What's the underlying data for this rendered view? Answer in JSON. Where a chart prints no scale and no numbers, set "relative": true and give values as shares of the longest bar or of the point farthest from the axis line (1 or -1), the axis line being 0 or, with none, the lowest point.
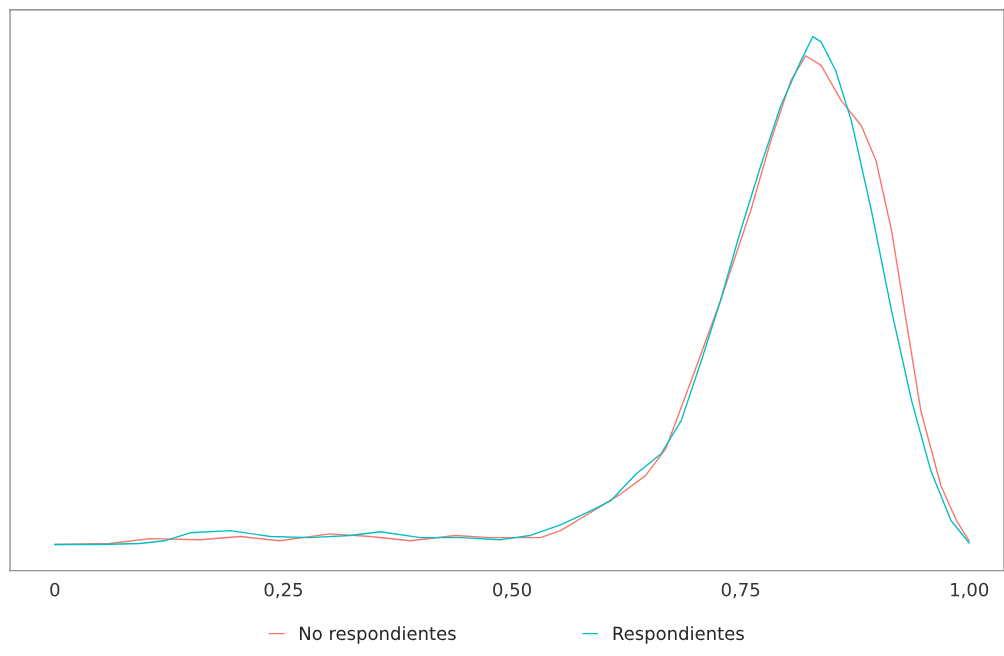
{
  "chart_data": {
    "type": "line",
    "relative": true,
    "xlim": [
      -0.049,
      1.038
    ],
    "xticks": [
      0,
      {
        "value": 0.25,
        "label": "0,25"
      },
      {
        "value": 0.5,
        "label": "0,50"
      },
      {
        "value": 0.75,
        "label": "0,75"
      },
      {
        "value": 1,
        "label": "1,00"
      }
    ],
    "series": [
      {
        "name": "No respondientes",
        "color": "#f8766d",
        "x": [
          0,
          0.06,
          0.104,
          0.159,
          0.203,
          0.246,
          0.301,
          0.345,
          0.389,
          0.438,
          0.476,
          0.531,
          0.553,
          0.586,
          0.619,
          0.646,
          0.668,
          0.696,
          0.728,
          0.761,
          0.783,
          0.805,
          0.821,
          0.838,
          0.86,
          0.882,
          0.898,
          0.915,
          0.931,
          0.947,
          0.969,
          0.986,
          1.0
        ],
        "values": [
          0.049,
          0.051,
          0.06,
          0.058,
          0.064,
          0.056,
          0.069,
          0.064,
          0.056,
          0.066,
          0.062,
          0.062,
          0.075,
          0.109,
          0.144,
          0.178,
          0.228,
          0.356,
          0.506,
          0.674,
          0.805,
          0.918,
          0.964,
          0.946,
          0.88,
          0.833,
          0.768,
          0.637,
          0.468,
          0.3,
          0.159,
          0.094,
          0.056
        ]
      },
      {
        "name": "Respondientes",
        "color": "#00bfc4",
        "x": [
          0,
          0.049,
          0.093,
          0.12,
          0.148,
          0.192,
          0.236,
          0.279,
          0.323,
          0.356,
          0.4,
          0.444,
          0.487,
          0.52,
          0.553,
          0.586,
          0.608,
          0.635,
          0.663,
          0.685,
          0.707,
          0.728,
          0.75,
          0.772,
          0.794,
          0.816,
          0.829,
          0.838,
          0.854,
          0.871,
          0.893,
          0.915,
          0.937,
          0.958,
          0.98,
          1.0
        ],
        "values": [
          0.049,
          0.049,
          0.051,
          0.056,
          0.071,
          0.075,
          0.064,
          0.062,
          0.066,
          0.073,
          0.062,
          0.062,
          0.058,
          0.066,
          0.086,
          0.112,
          0.131,
          0.18,
          0.219,
          0.281,
          0.393,
          0.506,
          0.637,
          0.758,
          0.871,
          0.955,
          1.0,
          0.99,
          0.936,
          0.843,
          0.674,
          0.487,
          0.318,
          0.187,
          0.094,
          0.052
        ]
      }
    ],
    "grid": false,
    "legend": "bottom"
  }
}
